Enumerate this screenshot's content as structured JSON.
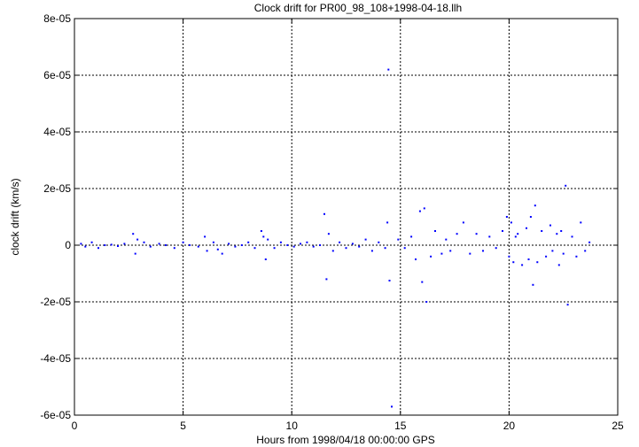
{
  "chart_data": {
    "type": "scatter",
    "title": "Clock drift for PR00_98_108+1998-04-18.llh",
    "xlabel": "Hours from 1998/04/18 00:00:00 GPS",
    "ylabel": "clock drift (km/s)",
    "xlim": [
      0,
      25
    ],
    "ylim": [
      -6e-05,
      8e-05
    ],
    "x_ticks": [
      0,
      5,
      10,
      15,
      20,
      25
    ],
    "x_tick_labels": [
      "0",
      "5",
      "10",
      "15",
      "20",
      "25"
    ],
    "y_ticks": [
      -6e-05,
      -4e-05,
      -2e-05,
      0,
      2e-05,
      4e-05,
      6e-05,
      8e-05
    ],
    "y_tick_labels": [
      "-6e-05",
      "-4e-05",
      "-2e-05",
      "0",
      "2e-05",
      "4e-05",
      "6e-05",
      "8e-05"
    ],
    "grid": true,
    "marker_color": "#0000ff",
    "series": [
      {
        "x": [
          0.3,
          0.5,
          0.8,
          1.1,
          1.4,
          1.7,
          2.0,
          2.3,
          2.7,
          2.8,
          2.9,
          3.2,
          3.5,
          3.9,
          4.2,
          4.6,
          5.0,
          5.3,
          5.7,
          6.0,
          6.1,
          6.4,
          6.6,
          6.8,
          7.1,
          7.4,
          7.7,
          8.0,
          8.3,
          8.6,
          8.7,
          8.8,
          8.9,
          9.2,
          9.5,
          9.8,
          10.1,
          10.4,
          10.7,
          11.0,
          11.3,
          11.5,
          11.6,
          11.7,
          11.9,
          12.2,
          12.5,
          12.8,
          13.1,
          13.4,
          13.7,
          14.0,
          14.3,
          14.4,
          14.45,
          14.5,
          14.6,
          14.9,
          15.2,
          15.5,
          15.7,
          15.9,
          16.0,
          16.1,
          16.2,
          16.4,
          16.6,
          16.9,
          17.1,
          17.3,
          17.6,
          17.9,
          18.2,
          18.5,
          18.8,
          19.1,
          19.4,
          19.7,
          19.9,
          20.0,
          20.1,
          20.2,
          20.3,
          20.4,
          20.6,
          20.8,
          20.9,
          21.0,
          21.1,
          21.2,
          21.3,
          21.5,
          21.7,
          21.9,
          22.0,
          22.2,
          22.3,
          22.4,
          22.5,
          22.6,
          22.7,
          22.9,
          23.1,
          23.3,
          23.5,
          23.7
        ],
        "y": [
          5e-07,
          -5e-07,
          1e-06,
          -1e-06,
          0,
          2e-07,
          -3e-07,
          5e-07,
          4e-06,
          -3e-06,
          2e-06,
          1e-06,
          -5e-07,
          5e-07,
          0,
          -1e-06,
          1e-06,
          0,
          -5e-07,
          3e-06,
          -2e-06,
          1e-06,
          -1.5e-06,
          -3e-06,
          5e-07,
          -5e-07,
          0,
          1e-06,
          -1e-06,
          5e-06,
          3e-06,
          -5e-06,
          2e-06,
          -1e-06,
          1e-06,
          0,
          -5e-07,
          5e-07,
          1e-06,
          -5e-07,
          0,
          1.1e-05,
          -1.2e-05,
          4e-06,
          -2e-06,
          1e-06,
          -1e-06,
          5e-07,
          -5e-07,
          2e-06,
          -2e-06,
          1e-06,
          -1e-06,
          8e-06,
          6.2e-05,
          -1.25e-05,
          -5.7e-05,
          2e-06,
          -1e-06,
          3e-06,
          -5e-06,
          1.2e-05,
          -1.3e-05,
          1.3e-05,
          -2e-05,
          -4e-06,
          5e-06,
          -3e-06,
          2e-06,
          -2e-06,
          4e-06,
          8e-06,
          -3e-06,
          4e-06,
          -2e-06,
          3e-06,
          -1e-06,
          5e-06,
          1e-05,
          -4e-06,
          8e-06,
          -6e-06,
          3e-06,
          4e-06,
          -7e-06,
          6e-06,
          -5e-06,
          1e-05,
          -1.4e-05,
          1.4e-05,
          -6e-06,
          5e-06,
          -4e-06,
          7e-06,
          -2e-06,
          4e-06,
          -7e-06,
          5e-06,
          -3e-06,
          2.1e-05,
          -2.1e-05,
          3e-06,
          -4e-06,
          8e-06,
          -2e-06,
          1e-06
        ]
      }
    ]
  }
}
